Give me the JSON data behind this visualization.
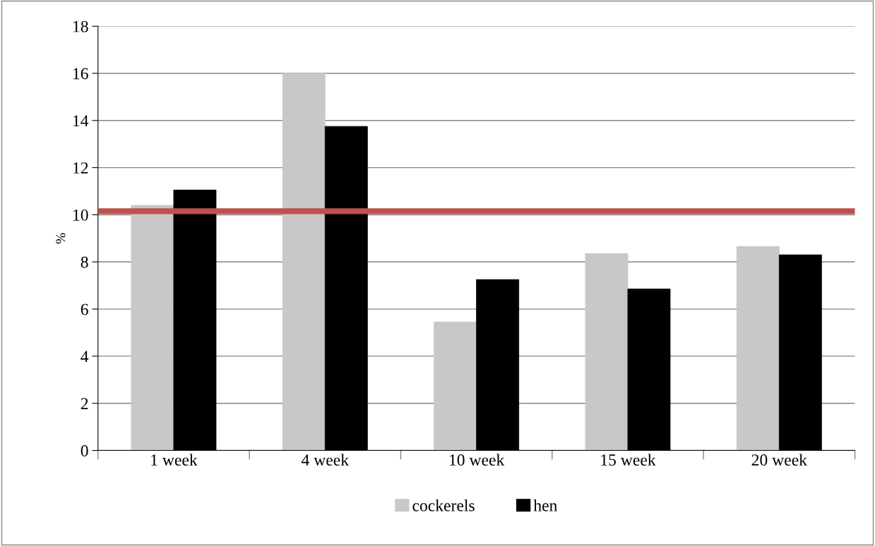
{
  "chart_data": {
    "type": "bar",
    "ylabel": "%",
    "categories": [
      "1 week",
      "4 week",
      "10 week",
      "15 week",
      "20 week"
    ],
    "series": [
      {
        "name": "cockerels",
        "color": "#c8c8c8",
        "values": [
          10.4,
          16.0,
          5.45,
          8.35,
          8.65
        ]
      },
      {
        "name": "hen",
        "color": "#000000",
        "values": [
          11.05,
          13.75,
          7.25,
          6.85,
          8.3
        ]
      }
    ],
    "ylim": [
      0,
      18
    ],
    "yticks": [
      0,
      2,
      4,
      6,
      8,
      10,
      12,
      14,
      16,
      18
    ],
    "grid": "y",
    "legend": "bottom",
    "ref_lines": [
      {
        "axis": "y",
        "value": 10.15,
        "color": "#c0504d"
      }
    ]
  }
}
